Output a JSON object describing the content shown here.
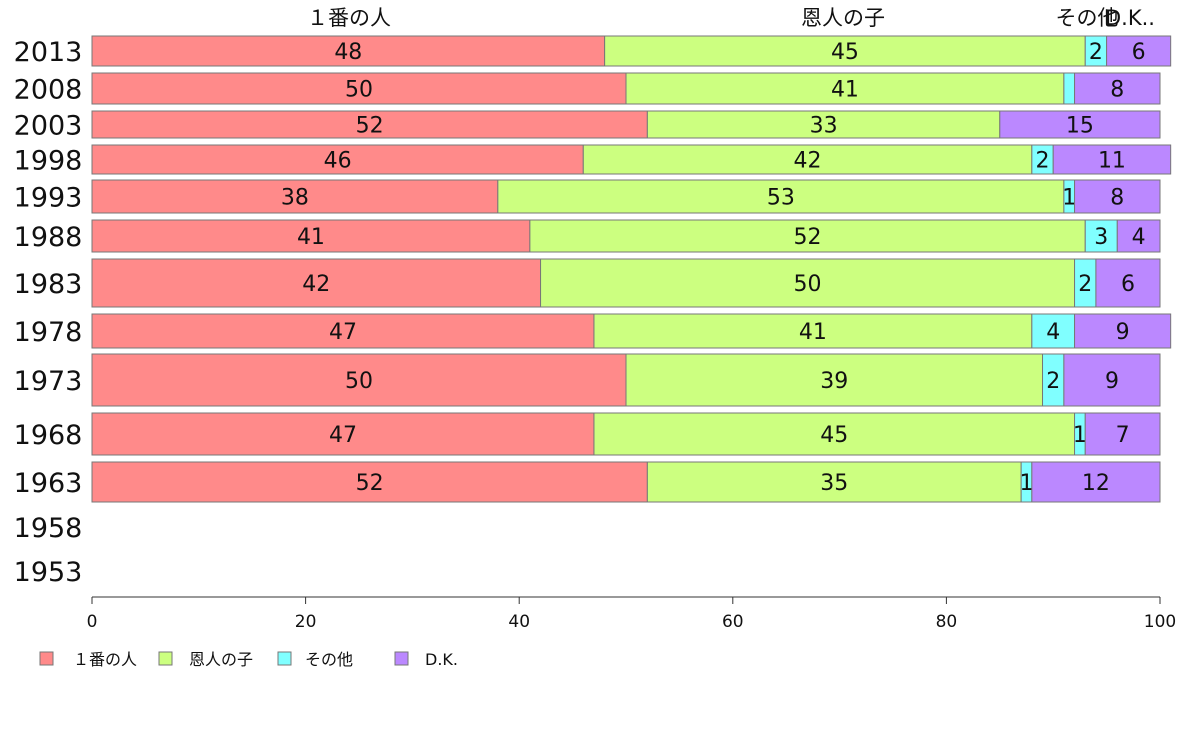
{
  "chart_data": {
    "type": "bar",
    "orientation": "horizontal",
    "stacked": true,
    "categories": [
      "2013",
      "2008",
      "2003",
      "1998",
      "1993",
      "1988",
      "1983",
      "1978",
      "1973",
      "1968",
      "1963",
      "1958",
      "1953"
    ],
    "series": [
      {
        "name": "１番の人",
        "color": "#ff8a8a",
        "values": [
          48,
          50,
          52,
          46,
          38,
          41,
          42,
          47,
          50,
          47,
          52,
          null,
          null
        ]
      },
      {
        "name": "恩人の子",
        "color": "#ccff80",
        "values": [
          45,
          41,
          33,
          42,
          53,
          52,
          50,
          41,
          39,
          45,
          35,
          null,
          null
        ]
      },
      {
        "name": "その他",
        "color": "#80ffff",
        "values": [
          2,
          1,
          0,
          2,
          1,
          3,
          2,
          4,
          2,
          1,
          1,
          null,
          null
        ]
      },
      {
        "name": "D.K.",
        "color": "#bb88ff",
        "values": [
          6,
          8,
          15,
          11,
          8,
          4,
          6,
          9,
          9,
          7,
          12,
          null,
          null
        ]
      }
    ],
    "segment_labels": [
      [
        "48",
        "45",
        "2",
        "6"
      ],
      [
        "50",
        "41",
        "",
        "8"
      ],
      [
        "52",
        "33",
        "",
        "15"
      ],
      [
        "46",
        "42",
        "2",
        "11"
      ],
      [
        "38",
        "53",
        "1",
        "8"
      ],
      [
        "41",
        "52",
        "3",
        "4"
      ],
      [
        "42",
        "50",
        "2",
        "6"
      ],
      [
        "47",
        "41",
        "4",
        "9"
      ],
      [
        "50",
        "39",
        "2",
        "9"
      ],
      [
        "47",
        "45",
        "1",
        "7"
      ],
      [
        "52",
        "35",
        "1",
        "12"
      ],
      [
        "",
        "",
        "",
        ""
      ],
      [
        "",
        "",
        "",
        ""
      ]
    ],
    "top_labels": [
      "１番の人",
      "恩人の子",
      "その他",
      "D.K.."
    ],
    "xlim": [
      0,
      100
    ],
    "xticks": [
      "0",
      "20",
      "40",
      "60",
      "80",
      "100"
    ],
    "grid": false,
    "legend_position": "bottom-left"
  }
}
